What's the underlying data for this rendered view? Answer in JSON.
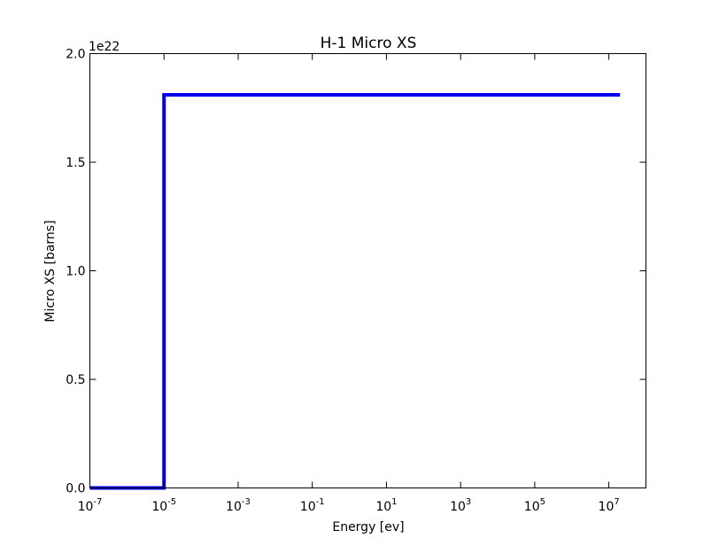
{
  "chart_data": {
    "type": "line",
    "title": "H-1 Micro XS",
    "xlabel": "Energy [ev]",
    "ylabel": "Micro XS [barns]",
    "y_offset_label": "1e22",
    "x_scale": "log",
    "xlim": [
      1e-07,
      100000000.0
    ],
    "ylim": [
      0,
      2.0
    ],
    "grid": false,
    "x_ticks": [
      {
        "base": "10",
        "exp": "-7",
        "value": 1e-07
      },
      {
        "base": "10",
        "exp": "-5",
        "value": 1e-05
      },
      {
        "base": "10",
        "exp": "-3",
        "value": 0.001
      },
      {
        "base": "10",
        "exp": "-1",
        "value": 0.1
      },
      {
        "base": "10",
        "exp": "1",
        "value": 10.0
      },
      {
        "base": "10",
        "exp": "3",
        "value": 1000.0
      },
      {
        "base": "10",
        "exp": "5",
        "value": 100000.0
      },
      {
        "base": "10",
        "exp": "7",
        "value": 10000000.0
      }
    ],
    "y_ticks": [
      {
        "label": "0.0",
        "value": 0.0
      },
      {
        "label": "0.5",
        "value": 0.5
      },
      {
        "label": "1.0",
        "value": 1.0
      },
      {
        "label": "1.5",
        "value": 1.5
      },
      {
        "label": "2.0",
        "value": 2.0
      }
    ],
    "series": [
      {
        "color": "#0000ee",
        "x": [
          1e-07,
          1e-05,
          1e-05,
          20000000.0
        ],
        "y": [
          0.0,
          0.0,
          1.81,
          1.81
        ]
      }
    ]
  }
}
